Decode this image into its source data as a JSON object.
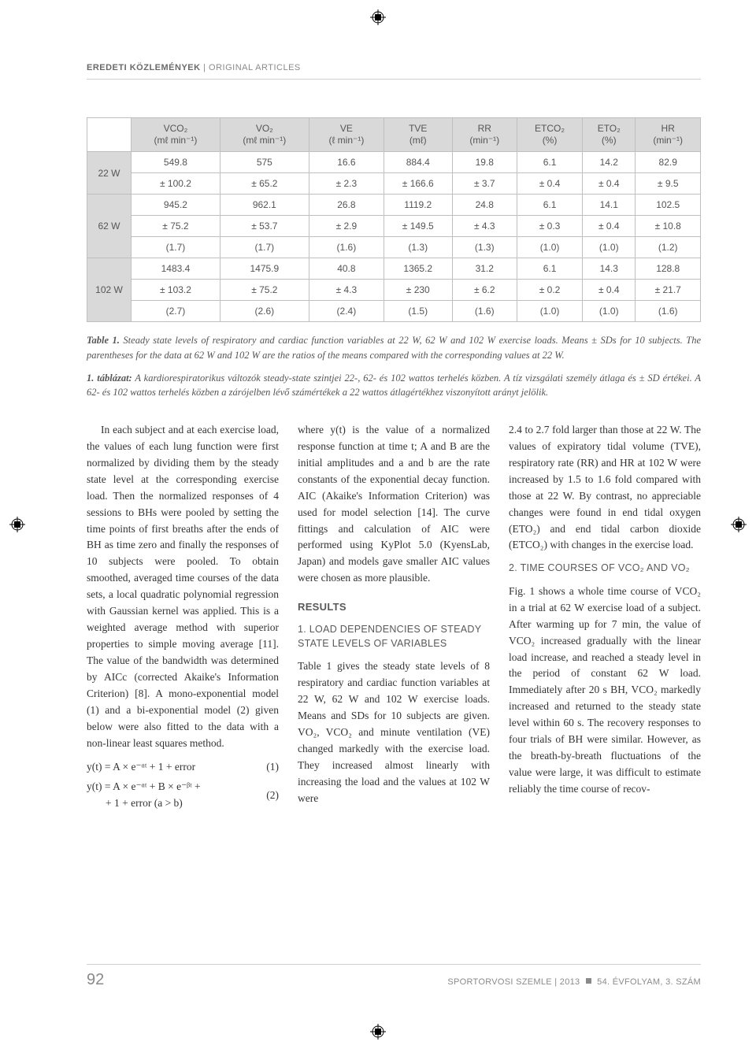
{
  "running_head": {
    "bold": "EREDETI KÖZLEMÉNYEK",
    "light": "  |  ORIGINAL ARTICLES"
  },
  "table": {
    "headers": [
      "VCO₂\n(mℓ min⁻¹)",
      "VO₂\n(mℓ min⁻¹)",
      "VE\n(ℓ min⁻¹)",
      "TVE\n(mℓ)",
      "RR\n(min⁻¹)",
      "ETCO₂\n(%)",
      "ETO₂\n(%)",
      "HR\n(min⁻¹)"
    ],
    "groups": [
      {
        "label": "22 W",
        "rows": [
          [
            "549.8",
            "575",
            "16.6",
            "884.4",
            "19.8",
            "6.1",
            "14.2",
            "82.9"
          ],
          [
            "± 100.2",
            "± 65.2",
            "± 2.3",
            "± 166.6",
            "± 3.7",
            "± 0.4",
            "± 0.4",
            "± 9.5"
          ]
        ]
      },
      {
        "label": "62 W",
        "rows": [
          [
            "945.2",
            "962.1",
            "26.8",
            "1119.2",
            "24.8",
            "6.1",
            "14.1",
            "102.5"
          ],
          [
            "± 75.2",
            "± 53.7",
            "± 2.9",
            "± 149.5",
            "± 4.3",
            "± 0.3",
            "± 0.4",
            "± 10.8"
          ],
          [
            "(1.7)",
            "(1.7)",
            "(1.6)",
            "(1.3)",
            "(1.3)",
            "(1.0)",
            "(1.0)",
            "(1.2)"
          ]
        ]
      },
      {
        "label": "102 W",
        "rows": [
          [
            "1483.4",
            "1475.9",
            "40.8",
            "1365.2",
            "31.2",
            "6.1",
            "14.3",
            "128.8"
          ],
          [
            "± 103.2",
            "± 75.2",
            "± 4.3",
            "± 230",
            "± 6.2",
            "± 0.2",
            "± 0.4",
            "± 21.7"
          ],
          [
            "(2.7)",
            "(2.6)",
            "(2.4)",
            "(1.5)",
            "(1.6)",
            "(1.0)",
            "(1.0)",
            "(1.6)"
          ]
        ]
      }
    ]
  },
  "caption_en_lead": "Table 1.",
  "caption_en": " Steady state levels of respiratory and cardiac function variables at 22 W, 62 W and 102 W exercise loads. Means ± SDs for 10 subjects. The parentheses for the data at 62 W and 102 W are the ratios of the means compared with the corresponding values at 22 W.",
  "caption_hu_lead": "1. táblázat:",
  "caption_hu": " A kardiorespiratorikus változók steady-state szintjei 22-, 62- és 102 wattos terhelés közben. A tíz vizsgálati személy átlaga és ± SD értékei. A 62- és 102 wattos terhelés közben a zárójelben lévő számértékek a 22 wattos átlagértékhez viszonyított arányt jelölik.",
  "col1_p1": "In each subject and at each exercise load, the values of each lung function were first normalized by dividing them by the steady state level at the corresponding exercise load. Then the normalized responses of 4 sessions to BHs were pooled by setting the time points of first breaths after the ends of BH as time zero and finally the responses of 10 subjects were pooled. To obtain smoothed, averaged time courses of the data sets, a local quadratic polynomial regression with Gaussian kernel was applied. This is a weighted average method with superior properties to simple moving average [11]. The value of the bandwidth was determined by AICc (corrected Akaike's Information Criterion) [8]. A mono-exponential model (1) and a bi-exponential model (2) given below were also fitted to the data with a non-linear least squares method.",
  "eq1": "y(t) = A × e⁻ᵅᵗ + 1 + error",
  "eq1_num": "(1)",
  "eq2a": "y(t) = A × e⁻ᵅᵗ + B × e⁻ᵝᵗ +",
  "eq2b": "+ 1 + error  (a > b)",
  "eq2_num": "(2)",
  "col2_p1": "where y(t) is the value of a normalized response function at time t; A and B are the initial amplitudes and a and b are the rate constants of the exponential decay function. AIC (Akaike's Information Criterion) was used for model selection [14]. The curve fittings and calculation of AIC were performed using KyPlot 5.0 (KyensLab, Japan) and models gave smaller AIC values were chosen as more plausible.",
  "results_h": "RESULTS",
  "sub1_h": "1. LOAD DEPENDENCIES OF STEADY STATE LEVELS OF VARIABLES",
  "col2_p2": "Table 1 gives the steady state levels of 8 respiratory and cardiac function variables at 22 W, 62 W and 102 W exercise loads. Means and SDs for 10 subjects are given. VO₂, VCO₂ and minute ventilation (VE) changed markedly with the exercise load. They increased almost linearly with increasing the load and the values at 102 W were",
  "col3_p1": "2.4 to 2.7 fold larger than those at 22 W. The values of expiratory tidal volume (TVE), respiratory rate (RR) and HR at 102 W were increased by 1.5 to 1.6 fold compared with those at 22 W. By contrast, no appreciable changes were found in end tidal oxygen (ETO₂) and end tidal carbon dioxide (ETCO₂) with changes in the exercise load.",
  "sub2_h": "2. TIME COURSES OF VCO₂ AND VO₂",
  "col3_p2": "Fig. 1 shows a whole time course of VCO₂ in a trial at 62 W exercise load of a subject. After warming up for 7 min, the value of VCO₂ increased gradually with the linear load increase, and reached a steady level in the period of constant 62 W load. Immediately after 20 s BH, VCO₂ markedly increased and returned to the steady state level within 60 s. The recovery responses to four trials of BH were similar. However, as the breath-by-breath fluctuations of the value were large, it was difficult to estimate reliably the time course of recov-",
  "footer": {
    "page": "92",
    "text": "SPORTORVOSI SZEMLE  |  2013      54. ÉVFOLYAM, 3. SZÁM"
  }
}
